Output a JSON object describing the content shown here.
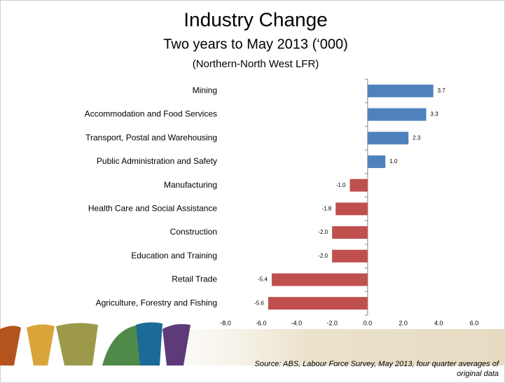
{
  "chart_data": {
    "type": "hbar",
    "title": "Industry  Change",
    "subtitle": "Two years to May 2013 (‘000)",
    "subtitle2": "(Northern-North West LFR)",
    "categories": [
      "Mining",
      "Accommodation and Food Services",
      "Transport, Postal and Warehousing",
      "Public Administration and Safety",
      "Manufacturing",
      "Health Care and Social Assistance",
      "Construction",
      "Education and Training",
      "Retail Trade",
      "Agriculture, Forestry and Fishing"
    ],
    "values": [
      3.7,
      3.3,
      2.3,
      1.0,
      -1.0,
      -1.8,
      -2.0,
      -2.0,
      -5.4,
      -5.6
    ],
    "value_labels": [
      "3.7",
      "3.3",
      "2.3",
      "1.0",
      "-1.0",
      "-1.8",
      "-2.0",
      "-2.0",
      "-5.4",
      "-5.6"
    ],
    "positive_color": "#4f81bd",
    "negative_color": "#c0504d",
    "xlim": [
      -8,
      6
    ],
    "xticks": [
      {
        "value": -8,
        "label": "-8.0"
      },
      {
        "value": -6,
        "label": "-6.0"
      },
      {
        "value": -4,
        "label": "-4.0"
      },
      {
        "value": -2,
        "label": "-2.0"
      },
      {
        "value": 0,
        "label": "0.0"
      },
      {
        "value": 2,
        "label": "2.0"
      },
      {
        "value": 4,
        "label": "4.0"
      },
      {
        "value": 6,
        "label": "6.0"
      }
    ],
    "grid": false,
    "source": [
      "Source: ABS, Labour Force Survey, May 2013, four quarter averages of",
      "original data"
    ]
  }
}
